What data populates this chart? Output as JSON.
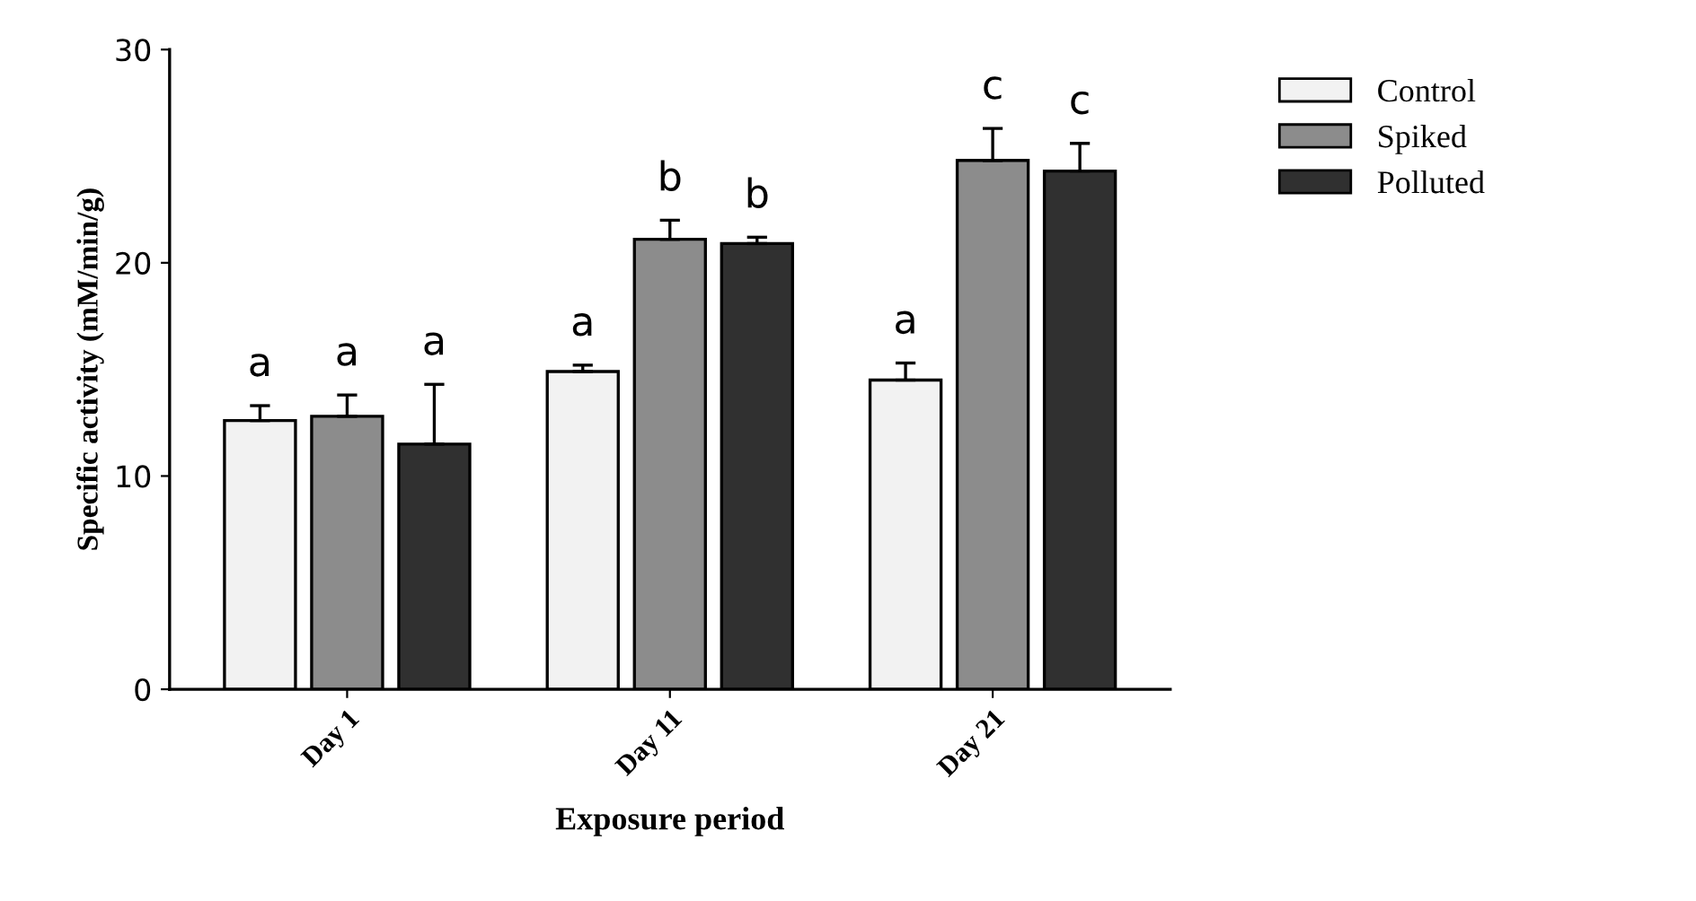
{
  "chart_data": {
    "type": "bar",
    "xlabel": "Exposure period",
    "ylabel": "Specific activity (mM/min/g)",
    "categories": [
      "Day 1",
      "Day 11",
      "Day 21"
    ],
    "series": [
      {
        "name": "Control",
        "color": "#f2f2f2",
        "values": [
          12.6,
          14.9,
          14.5
        ],
        "errors": [
          0.7,
          0.3,
          0.8
        ],
        "value_labels": [
          "a",
          "a",
          "a"
        ]
      },
      {
        "name": "Spiked",
        "color": "#8c8c8c",
        "values": [
          12.8,
          21.1,
          24.8
        ],
        "errors": [
          1.0,
          0.9,
          1.5
        ],
        "value_labels": [
          "a",
          "b",
          "c"
        ]
      },
      {
        "name": "Polluted",
        "color": "#303030",
        "values": [
          11.5,
          20.9,
          24.3
        ],
        "errors": [
          2.8,
          0.3,
          1.3
        ],
        "value_labels": [
          "a",
          "b",
          "c"
        ]
      }
    ],
    "ylim": [
      0,
      30
    ],
    "yticks": [
      0,
      10,
      20,
      30
    ],
    "grid": false,
    "legend": "right"
  }
}
